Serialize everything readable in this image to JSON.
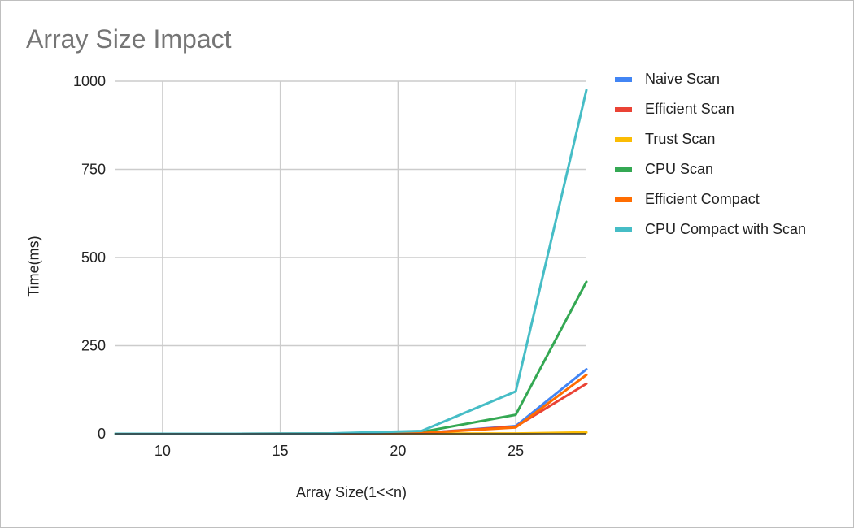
{
  "chart_data": {
    "type": "line",
    "title": "Array Size Impact",
    "xlabel": "Array Size(1<<n)",
    "ylabel": "Time(ms)",
    "xlim": [
      8,
      28
    ],
    "ylim": [
      0,
      1000
    ],
    "xticks": [
      10,
      15,
      20,
      25
    ],
    "yticks": [
      0,
      250,
      500,
      750,
      1000
    ],
    "grid": true,
    "legend_position": "right",
    "series": [
      {
        "name": "Naive Scan",
        "color": "#4285f4",
        "x": [
          8,
          13,
          17,
          21,
          25,
          28
        ],
        "y": [
          0,
          0,
          0.5,
          1.5,
          22,
          183
        ]
      },
      {
        "name": "Efficient Scan",
        "color": "#ea4335",
        "x": [
          8,
          13,
          17,
          21,
          25,
          28
        ],
        "y": [
          0,
          0,
          0.5,
          2,
          20,
          142
        ]
      },
      {
        "name": "Trust Scan",
        "color": "#fbbc04",
        "x": [
          8,
          13,
          17,
          21,
          25,
          28
        ],
        "y": [
          0,
          0,
          0,
          0.5,
          1,
          4
        ]
      },
      {
        "name": "CPU Scan",
        "color": "#34a853",
        "x": [
          8,
          13,
          17,
          21,
          25,
          28
        ],
        "y": [
          0,
          0,
          0.5,
          5,
          54,
          431
        ]
      },
      {
        "name": "Efficient Compact",
        "color": "#ff6d01",
        "x": [
          8,
          13,
          17,
          21,
          25,
          28
        ],
        "y": [
          0,
          0,
          0.5,
          2,
          18,
          167
        ]
      },
      {
        "name": "CPU Compact with Scan",
        "color": "#46bdc6",
        "x": [
          8,
          13,
          17,
          21,
          25,
          28
        ],
        "y": [
          0,
          0,
          1,
          8,
          120,
          975
        ]
      }
    ]
  }
}
